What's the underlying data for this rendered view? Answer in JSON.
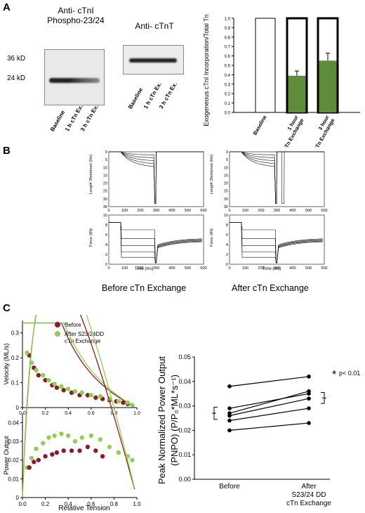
{
  "panels": {
    "a": "A",
    "b": "B",
    "c": "C"
  },
  "blots": {
    "ctni_title_line1": "Anti- cTnI",
    "ctni_title_line2": "Phospho-23/24",
    "ctnt_title": "Anti- cTnT",
    "mw_36": "36 kD",
    "mw_24": "24 kD",
    "lanes": [
      "Baseline",
      "1 h  cTn Ex.",
      "3 h  cTn Ex."
    ]
  },
  "chart_a": {
    "type": "bar",
    "ylabel": "Exogeneous cTnI Incorporation/Total Tn",
    "ylim": [
      0,
      1.0
    ],
    "yticks": [
      "0.0",
      "0.1",
      "0.2",
      "0.3",
      "0.4",
      "0.5",
      "0.6",
      "0.7",
      "0.8",
      "0.9",
      "1.0"
    ],
    "categories": [
      "Baseline",
      "1 hour\ncTn Exchange",
      "3 hour\ncTn Exchange"
    ],
    "values": [
      0.0,
      0.39,
      0.55
    ],
    "errors": [
      0,
      0.05,
      0.08
    ],
    "totals": [
      1.0,
      1.0,
      1.0
    ],
    "colors": {
      "fill": "#5e8c3a",
      "outline": "#000000"
    }
  },
  "panel_b": {
    "before_caption": "Before cTn Exchange",
    "after_caption": "After cTn Exchange",
    "length_ylabel": "Length Shortened (Ilm)",
    "force_ylabel": "Force (IlN)",
    "time_xlabel": "Time (ms)",
    "length_yticks": [
      "0",
      "5",
      "10",
      "15",
      "20",
      "25",
      "30",
      "35"
    ],
    "force_yticks": [
      "0",
      "2",
      "4",
      "6",
      "8",
      "10"
    ],
    "time_xticks": [
      "0",
      "100",
      "200",
      "300",
      "400",
      "500",
      "600"
    ]
  },
  "panel_c": {
    "legend_before": "Before",
    "legend_after_line1": "After S23/24DD",
    "legend_after_line2": "cTn Exchange",
    "velocity_ylabel": "Velocity (ML/s)",
    "power_ylabel": "Power Output",
    "xlabel": "Relative Tension",
    "velocity_yticks": [
      "0",
      "0.1",
      "0.2",
      "0.3"
    ],
    "power_yticks": [
      "0",
      "0.01",
      "0.02",
      "0.03",
      "0.04"
    ],
    "xticks": [
      "0.0",
      "0.2",
      "0.4",
      "0.6",
      "0.8",
      "1.0"
    ],
    "colors": {
      "before": "#8b1a2b",
      "after": "#8fd14f"
    }
  },
  "chart_data": [
    {
      "type": "bar",
      "ylabel": "Exogeneous cTnI Incorporation/Total Tn",
      "categories": [
        "Baseline",
        "1 hour cTn Exchange",
        "3 hour cTn Exchange"
      ],
      "series": [
        {
          "values": [
            0.0,
            0.39,
            0.55
          ]
        },
        {
          "values": [
            1.0,
            1.0,
            1.0
          ]
        }
      ],
      "ylim": [
        0,
        1.0
      ]
    },
    {
      "type": "scatter",
      "xlabel": "Relative Tension",
      "ylabel": "Velocity (ML/s)",
      "xlim": [
        0,
        1.0
      ],
      "ylim": [
        0,
        0.35
      ],
      "series": [
        {
          "name": "Before",
          "x": [
            0.06,
            0.1,
            0.14,
            0.2,
            0.26,
            0.3,
            0.36,
            0.43,
            0.5,
            0.57,
            0.64,
            0.7,
            0.76,
            0.82,
            0.88,
            0.92
          ],
          "y": [
            0.21,
            0.16,
            0.13,
            0.11,
            0.09,
            0.08,
            0.07,
            0.06,
            0.05,
            0.05,
            0.04,
            0.035,
            0.03,
            0.025,
            0.02,
            0.015
          ]
        },
        {
          "name": "After S23/24DD cTn Exchange",
          "x": [
            0.04,
            0.08,
            0.12,
            0.18,
            0.23,
            0.28,
            0.34,
            0.4,
            0.46,
            0.52,
            0.6,
            0.68,
            0.76,
            0.84,
            0.92,
            0.96
          ],
          "y": [
            0.22,
            0.18,
            0.15,
            0.13,
            0.11,
            0.095,
            0.085,
            0.075,
            0.065,
            0.06,
            0.05,
            0.045,
            0.035,
            0.025,
            0.02,
            0.01
          ]
        }
      ]
    },
    {
      "type": "scatter",
      "xlabel": "Relative Tension",
      "ylabel": "Power Output",
      "xlim": [
        0,
        1.0
      ],
      "ylim": [
        0,
        0.045
      ],
      "series": [
        {
          "name": "Before",
          "x": [
            0.06,
            0.1,
            0.14,
            0.2,
            0.26,
            0.3,
            0.36,
            0.43,
            0.5,
            0.57,
            0.64,
            0.7
          ],
          "y": [
            0.016,
            0.019,
            0.02,
            0.022,
            0.023,
            0.024,
            0.025,
            0.025,
            0.025,
            0.027,
            0.025,
            0.022
          ]
        },
        {
          "name": "After S23/24DD cTn Exchange",
          "x": [
            0.04,
            0.08,
            0.12,
            0.18,
            0.23,
            0.28,
            0.34,
            0.4,
            0.46,
            0.52,
            0.6,
            0.68,
            0.76,
            0.84,
            0.92,
            0.96
          ],
          "y": [
            0.016,
            0.021,
            0.026,
            0.029,
            0.032,
            0.033,
            0.034,
            0.033,
            0.03,
            0.032,
            0.033,
            0.031,
            0.027,
            0.024,
            0.022,
            0.02
          ]
        }
      ]
    },
    {
      "type": "line",
      "ylabel": "Peak Normalized Power Output (PNPO) (P/P0*ML*s-1)",
      "categories": [
        "Before",
        "After S23/24 DD cTn Exchange"
      ],
      "ylim": [
        0,
        0.05
      ],
      "series": [
        {
          "values": [
            0.038,
            0.042
          ]
        },
        {
          "values": [
            0.029,
            0.035
          ]
        },
        {
          "values": [
            0.027,
            0.036
          ]
        },
        {
          "values": [
            0.026,
            0.033
          ]
        },
        {
          "values": [
            0.024,
            0.029
          ]
        },
        {
          "values": [
            0.02,
            0.023
          ]
        }
      ]
    }
  ],
  "chart_d": {
    "ylabel_line1": "Peak Normalized Power Output",
    "ylabel_line2": "(PNPO) (P/P₀*ML*s⁻¹)",
    "yticks": [
      "0.00",
      "0.01",
      "0.02",
      "0.03",
      "0.04",
      "0.05"
    ],
    "cat_before": "Before",
    "cat_after_line1": "After",
    "cat_after_line2": "S23/24 DD",
    "cat_after_line3": "cTn Exchange",
    "significance_star": "*",
    "significance_text": "p< 0.01"
  }
}
